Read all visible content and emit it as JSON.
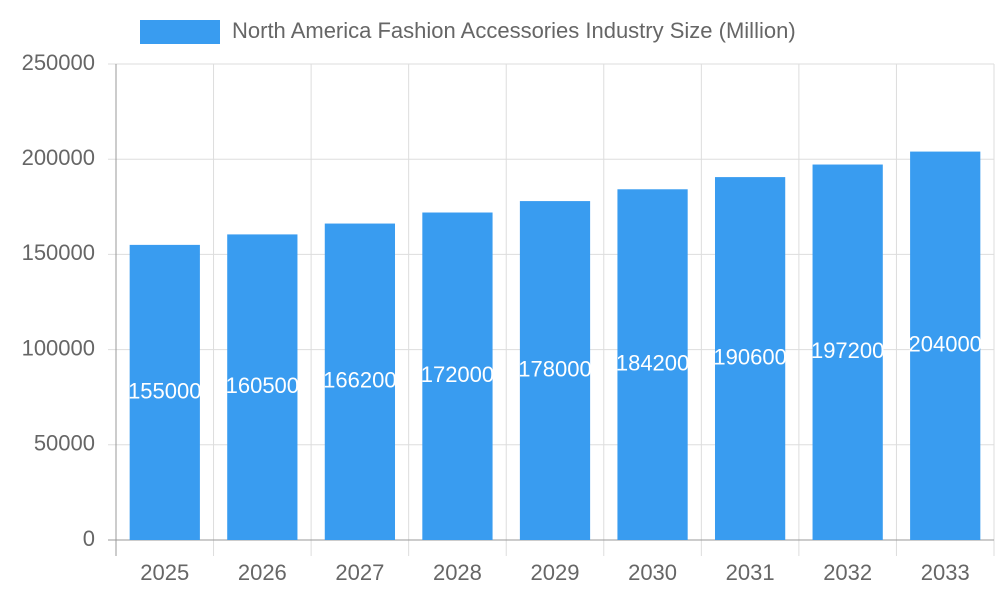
{
  "chart_data": {
    "type": "bar",
    "categories": [
      "2025",
      "2026",
      "2027",
      "2028",
      "2029",
      "2030",
      "2031",
      "2032",
      "2033"
    ],
    "series": [
      {
        "name": "North America Fashion Accessories Industry Size (Million)",
        "color": "#399cf0",
        "values": [
          155000,
          160500,
          166200,
          172000,
          178000,
          184200,
          190600,
          197200,
          204000
        ]
      }
    ],
    "ylim": [
      0,
      250000
    ],
    "yticks": [
      0,
      50000,
      100000,
      150000,
      200000,
      250000
    ],
    "grid": true,
    "legend": "top"
  }
}
